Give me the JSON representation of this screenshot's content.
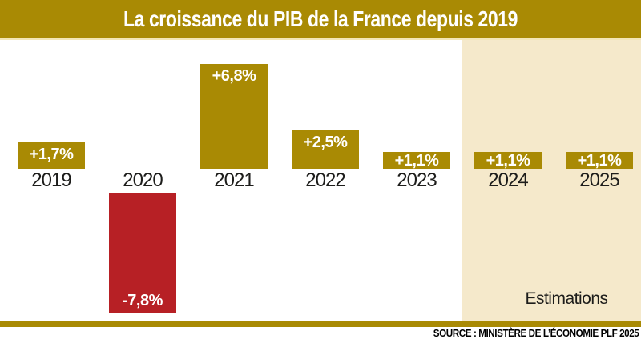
{
  "title": "La croissance du PIB de la France depuis 2019",
  "labels": {
    "estimations": "Estimations"
  },
  "source": "SOURCE : MINISTÈRE DE L’ÉCONOMIE PLF 2025",
  "colors": {
    "gold": "#a98a04",
    "red": "#b72025",
    "estimation_beige": "#f5e9cb",
    "header_underline": "#f3e6b5",
    "year_text": "#1d1d1b",
    "value_text": "#ffffff"
  },
  "chart_data": {
    "type": "bar",
    "title": "La croissance du PIB de la France depuis 2019",
    "categories": [
      "2019",
      "2020",
      "2021",
      "2022",
      "2023",
      "2024",
      "2025"
    ],
    "values": [
      1.7,
      -7.8,
      6.8,
      2.5,
      1.1,
      1.1,
      1.1
    ],
    "value_labels": [
      "+1,7%",
      "-7,8%",
      "+6,8%",
      "+2,5%",
      "+1,1%",
      "+1,1%",
      "+1,1%"
    ],
    "unit": "% croissance du PIB",
    "positive_color": "#a98a04",
    "negative_color": "#b72025",
    "estimation_years": [
      "2024",
      "2025"
    ],
    "estimation_zone_color": "#f5e9cb",
    "annotations": [
      "Estimations"
    ],
    "grid": false,
    "axes": "none — values labelled directly on bars",
    "baseline": 0
  }
}
